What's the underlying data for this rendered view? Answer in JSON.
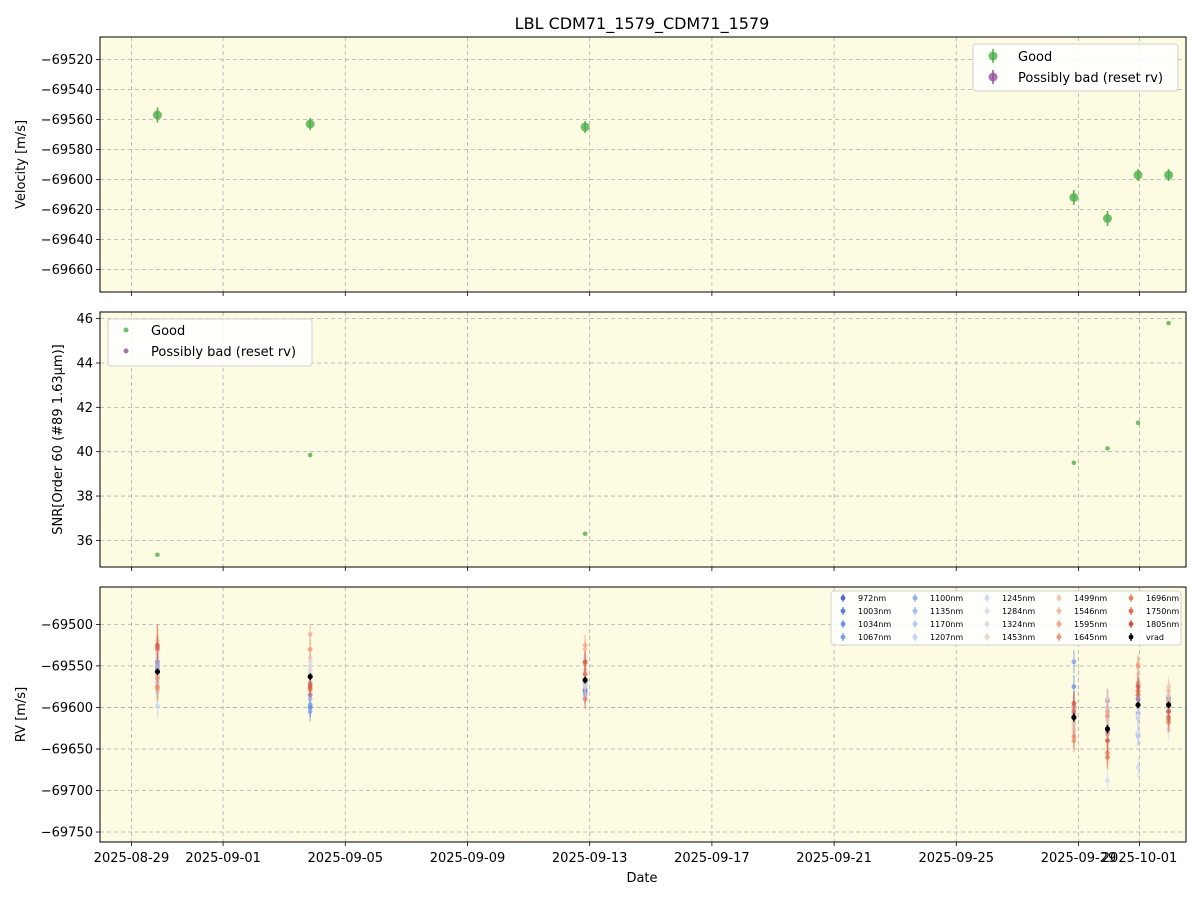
{
  "figure_title": "LBL CDM71_1579_CDM71_1579",
  "chart_data": [
    {
      "type": "scatter",
      "panel": "velocity",
      "title": "LBL CDM71_1579_CDM71_1579",
      "xlabel": "",
      "ylabel": "Velocity [m/s]",
      "ylim": [
        -69675,
        -69505
      ],
      "yticks": [
        -69520,
        -69540,
        -69560,
        -69580,
        -69600,
        -69620,
        -69640,
        -69660
      ],
      "grid": true,
      "background": "#fdfbe1",
      "legend": {
        "placement": "top-right",
        "entries": [
          "Good",
          "Possibly bad (reset rv)"
        ]
      },
      "series": [
        {
          "name": "Good",
          "color": "#4daf4a",
          "x": [
            "2025-08-29",
            "2025-09-03",
            "2025-09-12",
            "2025-09-28",
            "2025-09-29",
            "2025-09-30",
            "2025-10-01"
          ],
          "y": [
            -69557,
            -69563,
            -69565,
            -69612,
            -69626,
            -69597,
            -69597
          ],
          "err": [
            5,
            4,
            4,
            5,
            5,
            4,
            4
          ]
        },
        {
          "name": "Possibly bad (reset rv)",
          "color": "#984ea3",
          "x": [],
          "y": [],
          "err": []
        }
      ]
    },
    {
      "type": "scatter",
      "panel": "snr",
      "xlabel": "",
      "ylabel": "SNR[Order 60 (#89 1.63μm)]",
      "ylim": [
        34.8,
        46.3
      ],
      "yticks": [
        36,
        38,
        40,
        42,
        44,
        46
      ],
      "grid": true,
      "background": "#fdfbe1",
      "legend": {
        "placement": "top-left",
        "entries": [
          "Good",
          "Possibly bad (reset rv)"
        ]
      },
      "series": [
        {
          "name": "Good",
          "color": "#4daf4a",
          "x": [
            "2025-08-29",
            "2025-09-03",
            "2025-09-12",
            "2025-09-28",
            "2025-09-29",
            "2025-09-30",
            "2025-10-01"
          ],
          "y": [
            35.35,
            39.85,
            36.3,
            39.5,
            40.15,
            41.3,
            45.8
          ]
        },
        {
          "name": "Possibly bad (reset rv)",
          "color": "#984ea3",
          "x": [],
          "y": []
        }
      ]
    },
    {
      "type": "scatter",
      "panel": "rv_per_band",
      "xlabel": "Date",
      "ylabel": "RV [m/s]",
      "ylim": [
        -69762,
        -69455
      ],
      "yticks": [
        -69500,
        -69550,
        -69600,
        -69650,
        -69700,
        -69750
      ],
      "xlim": [
        "2025-08-28",
        "2025-10-02"
      ],
      "xticks": [
        "2025-08-29",
        "2025-09-01",
        "2025-09-05",
        "2025-09-09",
        "2025-09-13",
        "2025-09-17",
        "2025-09-21",
        "2025-09-25",
        "2025-09-29",
        "2025-10-01"
      ],
      "grid": true,
      "background": "#fdfbe1",
      "legend": {
        "placement": "top-right",
        "columns": 5
      },
      "x": [
        "2025-08-29",
        "2025-09-03",
        "2025-09-12",
        "2025-09-28",
        "2025-09-29",
        "2025-09-30",
        "2025-10-01"
      ],
      "series": [
        {
          "name": "972nm",
          "color": "#4a68d6",
          "y": [
            -69530,
            -69600,
            -69580,
            -69600,
            -69625,
            -69590,
            -69590
          ],
          "err": [
            15,
            12,
            12,
            14,
            14,
            12,
            12
          ]
        },
        {
          "name": "1003nm",
          "color": "#5a7be2",
          "y": [
            -69545,
            -69585,
            -69570,
            -69612,
            -69592,
            -69585,
            -69588
          ],
          "err": [
            15,
            12,
            12,
            14,
            14,
            12,
            12
          ]
        },
        {
          "name": "1034nm",
          "color": "#6a8ceb",
          "y": [
            -69552,
            -69597,
            -69578,
            -69575,
            -69605,
            -69572,
            -69595
          ],
          "err": [
            15,
            12,
            12,
            14,
            14,
            12,
            12
          ]
        },
        {
          "name": "1067nm",
          "color": "#7b9cf2",
          "y": [
            -69548,
            -69605,
            -69583,
            -69545,
            -69630,
            -69607,
            -69605
          ],
          "err": [
            15,
            12,
            12,
            14,
            14,
            12,
            12
          ]
        },
        {
          "name": "1100nm",
          "color": "#8daef7",
          "y": [
            -69555,
            -69590,
            -69572,
            -69598,
            -69600,
            -69633,
            -69598
          ],
          "err": [
            15,
            12,
            12,
            14,
            14,
            12,
            12
          ]
        },
        {
          "name": "1135nm",
          "color": "#9ebefa",
          "y": [
            -69562,
            -69570,
            -69585,
            -69608,
            -69612,
            -69612,
            -69590
          ],
          "err": [
            15,
            12,
            12,
            14,
            14,
            12,
            12
          ]
        },
        {
          "name": "1170nm",
          "color": "#aecbfc",
          "y": [
            -69570,
            -69578,
            -69588,
            -69620,
            -69640,
            -69635,
            -69602
          ],
          "err": [
            15,
            12,
            12,
            14,
            14,
            12,
            12
          ]
        },
        {
          "name": "1207nm",
          "color": "#bfd4fb",
          "y": [
            -69598,
            -69560,
            -69575,
            -69605,
            -69632,
            -69600,
            -69612
          ],
          "err": [
            15,
            12,
            12,
            14,
            14,
            12,
            12
          ]
        },
        {
          "name": "1245nm",
          "color": "#cdd9f6",
          "y": [
            -69582,
            -69550,
            -69560,
            -69625,
            -69688,
            -69672,
            -69627
          ],
          "err": [
            15,
            12,
            12,
            14,
            14,
            12,
            12
          ]
        },
        {
          "name": "1284nm",
          "color": "#d9dcee",
          "y": [
            -69540,
            -69545,
            -69545,
            -69615,
            -69600,
            -69630,
            -69585
          ],
          "err": [
            15,
            12,
            12,
            14,
            14,
            12,
            12
          ]
        },
        {
          "name": "1324nm",
          "color": "#e3dbe3",
          "y": [
            -69535,
            -69555,
            -69540,
            -69630,
            -69615,
            -69610,
            -69600
          ],
          "err": [
            15,
            12,
            12,
            14,
            14,
            12,
            12
          ]
        },
        {
          "name": "1453nm",
          "color": "#ecd3c5",
          "y": [
            -69560,
            -69540,
            -69570,
            -69628,
            -69640,
            -69560,
            -69600
          ],
          "err": [
            15,
            12,
            12,
            14,
            14,
            12,
            12
          ]
        },
        {
          "name": "1499nm",
          "color": "#f2c8b1",
          "y": [
            -69520,
            -69562,
            -69555,
            -69620,
            -69590,
            -69580,
            -69575
          ],
          "err": [
            15,
            12,
            12,
            14,
            14,
            12,
            12
          ]
        },
        {
          "name": "1546nm",
          "color": "#f4b99c",
          "y": [
            -69530,
            -69580,
            -69530,
            -69610,
            -69605,
            -69548,
            -69580
          ],
          "err": [
            15,
            12,
            12,
            14,
            14,
            12,
            12
          ]
        },
        {
          "name": "1595nm",
          "color": "#f3a888",
          "y": [
            -69578,
            -69512,
            -69525,
            -69600,
            -69632,
            -69570,
            -69592
          ],
          "err": [
            15,
            12,
            12,
            14,
            14,
            12,
            12
          ]
        },
        {
          "name": "1645nm",
          "color": "#ef9675",
          "y": [
            -69565,
            -69530,
            -69547,
            -69640,
            -69610,
            -69550,
            -69615
          ],
          "err": [
            15,
            12,
            12,
            14,
            14,
            12,
            12
          ]
        },
        {
          "name": "1696nm",
          "color": "#e98263",
          "y": [
            -69575,
            -69578,
            -69590,
            -69635,
            -69655,
            -69585,
            -69618
          ],
          "err": [
            15,
            12,
            12,
            14,
            14,
            12,
            12
          ]
        },
        {
          "name": "1750nm",
          "color": "#e06c53",
          "y": [
            -69528,
            -69572,
            -69560,
            -69605,
            -69660,
            -69580,
            -69612
          ],
          "err": [
            15,
            12,
            12,
            14,
            14,
            12,
            12
          ]
        },
        {
          "name": "1805nm",
          "color": "#d45544",
          "y": [
            -69525,
            -69575,
            -69545,
            -69595,
            -69640,
            -69575,
            -69605
          ],
          "err": [
            25,
            12,
            12,
            14,
            14,
            12,
            12
          ]
        },
        {
          "name": "vrad",
          "color": "#000000",
          "y": [
            -69557,
            -69563,
            -69567,
            -69612,
            -69626,
            -69597,
            -69597
          ],
          "err": [
            4,
            4,
            4,
            5,
            5,
            4,
            4
          ]
        }
      ]
    }
  ]
}
